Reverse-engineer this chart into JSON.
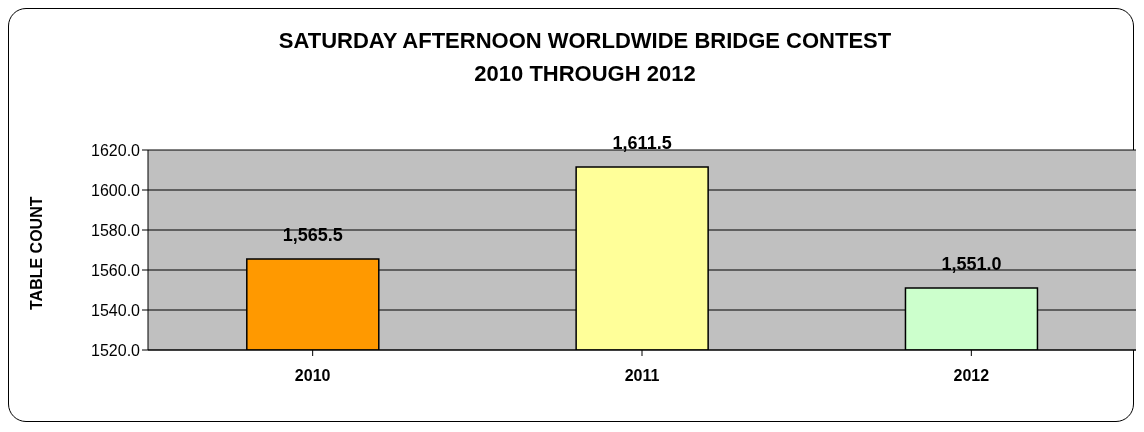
{
  "chart_data": {
    "type": "bar",
    "title": "SATURDAY AFTERNOON WORLDWIDE BRIDGE CONTEST\n2010 THROUGH 2012",
    "ylabel": "TABLE COUNT",
    "categories": [
      "2010",
      "2011",
      "2012"
    ],
    "values": [
      1565.5,
      1611.5,
      1551.0
    ],
    "colors": [
      "#ff9900",
      "#ffff99",
      "#ccffcc"
    ],
    "value_labels": [
      "1,565.5",
      "1,611.5",
      "1,551.0"
    ],
    "ylim": [
      1520,
      1620
    ],
    "yticks": [
      {
        "value": 1520,
        "label": "1520.0"
      },
      {
        "value": 1540,
        "label": "1540.0"
      },
      {
        "value": 1560,
        "label": "1560.0"
      },
      {
        "value": 1580,
        "label": "1580.0"
      },
      {
        "value": 1600,
        "label": "1600.0"
      },
      {
        "value": 1620,
        "label": "1620.0"
      }
    ],
    "grid": "y"
  }
}
